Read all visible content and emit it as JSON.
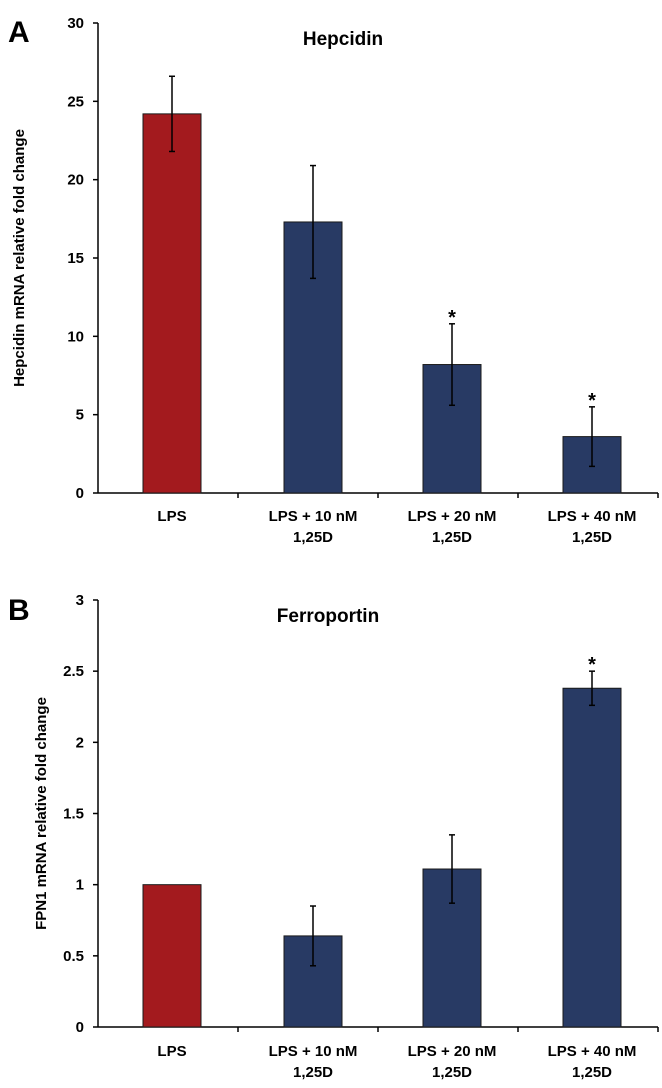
{
  "chart_data": [
    {
      "type": "bar",
      "panel_label": "A",
      "title": "Hepcidin",
      "ylabel": "Hepcidin mRNA relative fold change",
      "xlabel": "",
      "ylim": [
        0,
        30
      ],
      "yticks": [
        "0",
        "5",
        "10",
        "15",
        "20",
        "25",
        "30"
      ],
      "categories": [
        [
          "LPS"
        ],
        [
          "LPS + 10 nM",
          "1,25D"
        ],
        [
          "LPS + 20 nM",
          "1,25D"
        ],
        [
          "LPS + 40 nM",
          "1,25D"
        ]
      ],
      "values": [
        24.2,
        17.3,
        8.2,
        3.6
      ],
      "errors": [
        2.4,
        3.6,
        2.6,
        1.9
      ],
      "significance": [
        "",
        "",
        "*",
        "*"
      ],
      "colors": [
        "#a31a1e",
        "#283a64",
        "#283a64",
        "#283a64"
      ],
      "grid": false,
      "legend": "none"
    },
    {
      "type": "bar",
      "panel_label": "B",
      "title": "Ferroportin",
      "ylabel": "FPN1 mRNA relative fold change",
      "xlabel": "",
      "ylim": [
        0,
        3
      ],
      "yticks": [
        "0",
        "0.5",
        "1",
        "1.5",
        "2",
        "2.5",
        "3"
      ],
      "categories": [
        [
          "LPS"
        ],
        [
          "LPS + 10 nM",
          "1,25D"
        ],
        [
          "LPS + 20 nM",
          "1,25D"
        ],
        [
          "LPS + 40 nM",
          "1,25D"
        ]
      ],
      "values": [
        1.0,
        0.64,
        1.11,
        2.38
      ],
      "errors": [
        0.0,
        0.21,
        0.24,
        0.12
      ],
      "significance": [
        "",
        "",
        "",
        "*"
      ],
      "colors": [
        "#a31a1e",
        "#283a64",
        "#283a64",
        "#283a64"
      ],
      "grid": false,
      "legend": "none"
    }
  ]
}
